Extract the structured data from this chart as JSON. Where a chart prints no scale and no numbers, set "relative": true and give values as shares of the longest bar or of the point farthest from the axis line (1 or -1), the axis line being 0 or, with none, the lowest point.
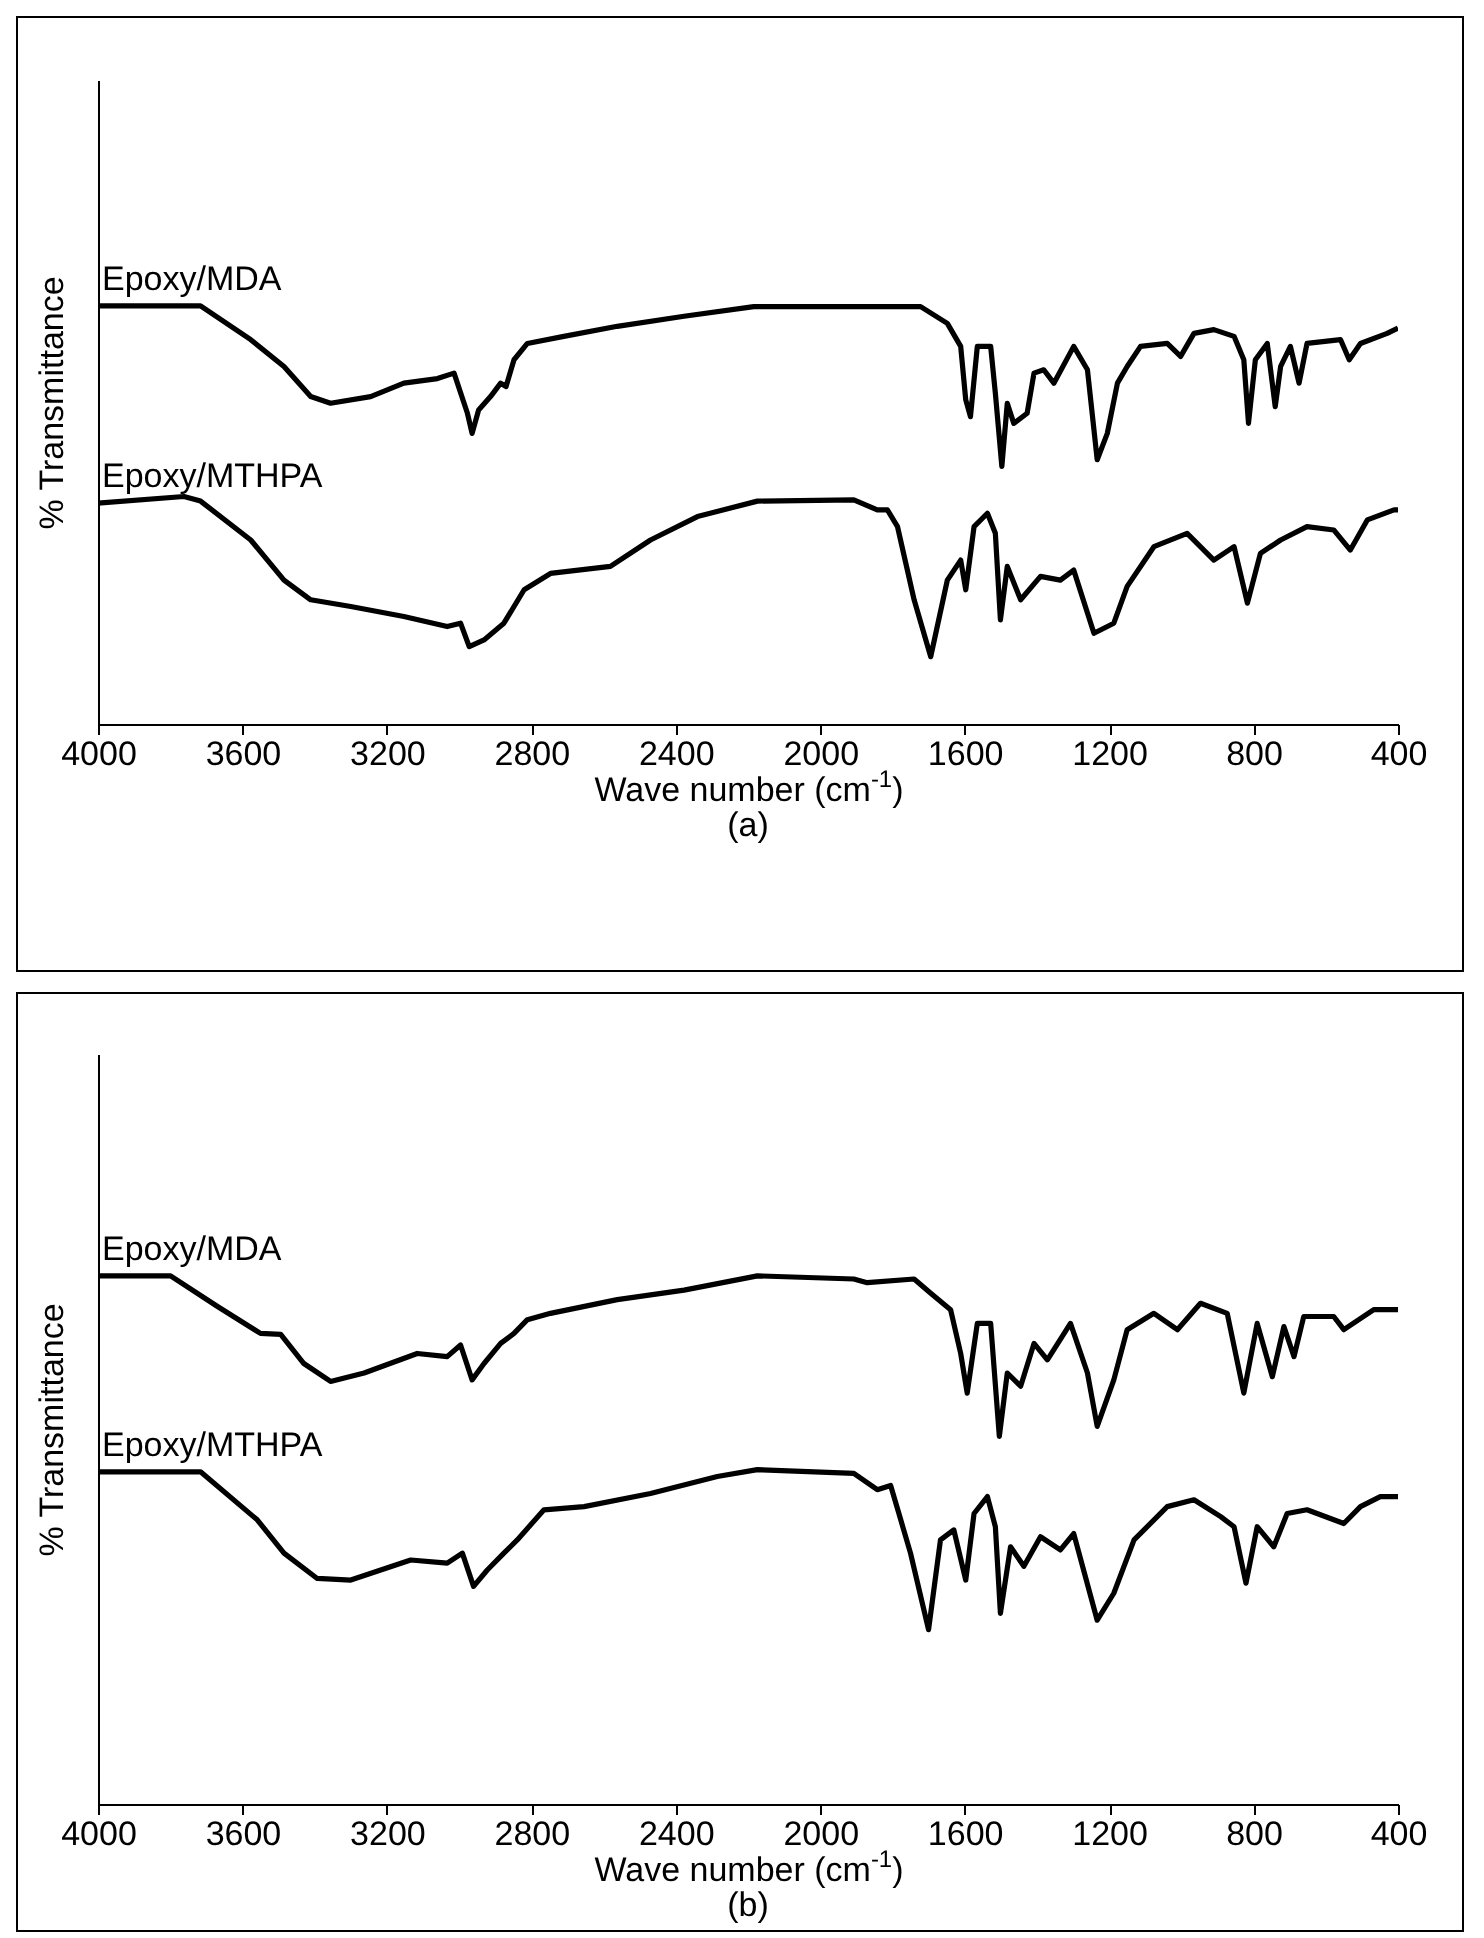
{
  "chart_data": [
    {
      "type": "line",
      "relative": true,
      "xlabel": "Wave number (cm$^{-1}$)",
      "ylabel": "% Transmittance",
      "annotations": [
        "(a)"
      ],
      "xlim": [
        4000,
        400
      ],
      "xticks": [
        4000,
        3600,
        3200,
        2800,
        2400,
        2000,
        1600,
        1200,
        800,
        400
      ],
      "series": [
        {
          "name": "Epoxy/MDA",
          "color": "#000000",
          "x": [
            4000,
            3716,
            3577,
            3485,
            3411,
            3356,
            3245,
            3153,
            3060,
            3014,
            2977,
            2964,
            2946,
            2913,
            2885,
            2870,
            2848,
            2811,
            2710,
            2562,
            2377,
            2184,
            1722,
            1648,
            1611,
            1597,
            1584,
            1565,
            1528,
            1515,
            1497,
            1482,
            1464,
            1427,
            1408,
            1381,
            1353,
            1298,
            1260,
            1233,
            1205,
            1177,
            1150,
            1113,
            1039,
            1002,
            965,
            910,
            854,
            827,
            814,
            795,
            762,
            740,
            725,
            698,
            674,
            652,
            559,
            535,
            504,
            430,
            400
          ],
          "values": [
            1.0,
            1.0,
            0.919,
            0.855,
            0.783,
            0.767,
            0.783,
            0.815,
            0.826,
            0.839,
            0.743,
            0.695,
            0.751,
            0.783,
            0.815,
            0.807,
            0.871,
            0.91,
            0.927,
            0.951,
            0.975,
            0.998,
            0.998,
            0.958,
            0.903,
            0.775,
            0.735,
            0.903,
            0.903,
            0.791,
            0.616,
            0.767,
            0.719,
            0.743,
            0.839,
            0.847,
            0.815,
            0.903,
            0.847,
            0.632,
            0.695,
            0.815,
            0.855,
            0.903,
            0.91,
            0.879,
            0.934,
            0.943,
            0.927,
            0.871,
            0.719,
            0.871,
            0.91,
            0.759,
            0.855,
            0.903,
            0.815,
            0.91,
            0.919,
            0.871,
            0.91,
            0.934,
            0.947
          ]
        },
        {
          "name": "Epoxy/MTHPA",
          "color": "#000000",
          "x": [
            4000,
            3762,
            3716,
            3577,
            3485,
            3411,
            3300,
            3153,
            3033,
            2996,
            2972,
            2931,
            2876,
            2820,
            2747,
            2581,
            2470,
            2340,
            2174,
            1907,
            1842,
            1814,
            1786,
            1740,
            1694,
            1648,
            1611,
            1597,
            1574,
            1537,
            1515,
            1501,
            1482,
            1445,
            1390,
            1335,
            1298,
            1242,
            1187,
            1150,
            1076,
            984,
            910,
            854,
            817,
            781,
            725,
            652,
            578,
            532,
            485,
            411,
            400
          ],
          "values": [
            0.528,
            0.544,
            0.533,
            0.44,
            0.344,
            0.297,
            0.281,
            0.257,
            0.233,
            0.241,
            0.185,
            0.201,
            0.241,
            0.321,
            0.36,
            0.377,
            0.44,
            0.496,
            0.533,
            0.536,
            0.512,
            0.512,
            0.472,
            0.297,
            0.161,
            0.344,
            0.392,
            0.321,
            0.472,
            0.504,
            0.456,
            0.249,
            0.377,
            0.297,
            0.353,
            0.344,
            0.368,
            0.217,
            0.241,
            0.329,
            0.424,
            0.456,
            0.392,
            0.424,
            0.289,
            0.408,
            0.44,
            0.472,
            0.464,
            0.416,
            0.488,
            0.512,
            0.512
          ]
        }
      ]
    },
    {
      "type": "line",
      "relative": true,
      "xlabel": "Wave number (cm$^{-1}$)",
      "ylabel": "% Transmittance",
      "annotations": [
        "(b)"
      ],
      "xlim": [
        4000,
        400
      ],
      "xticks": [
        4000,
        3600,
        3200,
        2800,
        2400,
        2000,
        1600,
        1200,
        800,
        400
      ],
      "series": [
        {
          "name": "Epoxy/MDA",
          "color": "#000000",
          "x": [
            4000,
            3799,
            3669,
            3550,
            3494,
            3430,
            3356,
            3263,
            3116,
            3033,
            2996,
            2964,
            2931,
            2885,
            2848,
            2811,
            2747,
            2562,
            2377,
            2174,
            1907,
            1870,
            1740,
            1694,
            1639,
            1611,
            1593,
            1565,
            1528,
            1504,
            1482,
            1445,
            1408,
            1371,
            1307,
            1260,
            1233,
            1187,
            1150,
            1076,
            1011,
            947,
            873,
            827,
            790,
            748,
            716,
            688,
            661,
            578,
            550,
            467,
            400
          ],
          "values": [
            1.0,
            1.0,
            0.942,
            0.891,
            0.889,
            0.834,
            0.8,
            0.816,
            0.853,
            0.847,
            0.869,
            0.803,
            0.834,
            0.872,
            0.891,
            0.917,
            0.929,
            0.955,
            0.973,
            1.0,
            0.994,
            0.987,
            0.994,
            0.967,
            0.936,
            0.853,
            0.778,
            0.91,
            0.91,
            0.696,
            0.816,
            0.791,
            0.872,
            0.841,
            0.91,
            0.816,
            0.715,
            0.803,
            0.898,
            0.929,
            0.898,
            0.948,
            0.929,
            0.778,
            0.91,
            0.809,
            0.904,
            0.847,
            0.923,
            0.923,
            0.898,
            0.936,
            0.936
          ]
        },
        {
          "name": "Epoxy/MTHPA",
          "color": "#000000",
          "x": [
            4000,
            3716,
            3559,
            3485,
            3393,
            3300,
            3134,
            3033,
            2991,
            2960,
            2922,
            2876,
            2839,
            2765,
            2654,
            2470,
            2285,
            2174,
            1907,
            1842,
            1805,
            1777,
            1750,
            1700,
            1667,
            1630,
            1597,
            1574,
            1537,
            1515,
            1501,
            1473,
            1436,
            1390,
            1335,
            1298,
            1233,
            1187,
            1131,
            1039,
            965,
            891,
            854,
            821,
            790,
            744,
            707,
            652,
            550,
            504,
            449,
            400
          ],
          "values": [
            0.629,
            0.629,
            0.538,
            0.475,
            0.427,
            0.424,
            0.462,
            0.456,
            0.475,
            0.412,
            0.443,
            0.475,
            0.5,
            0.557,
            0.563,
            0.588,
            0.62,
            0.633,
            0.626,
            0.595,
            0.603,
            0.538,
            0.475,
            0.33,
            0.5,
            0.519,
            0.424,
            0.55,
            0.582,
            0.525,
            0.361,
            0.487,
            0.45,
            0.506,
            0.481,
            0.512,
            0.348,
            0.399,
            0.5,
            0.563,
            0.576,
            0.544,
            0.525,
            0.418,
            0.525,
            0.487,
            0.55,
            0.557,
            0.531,
            0.563,
            0.582,
            0.582
          ]
        }
      ]
    }
  ]
}
